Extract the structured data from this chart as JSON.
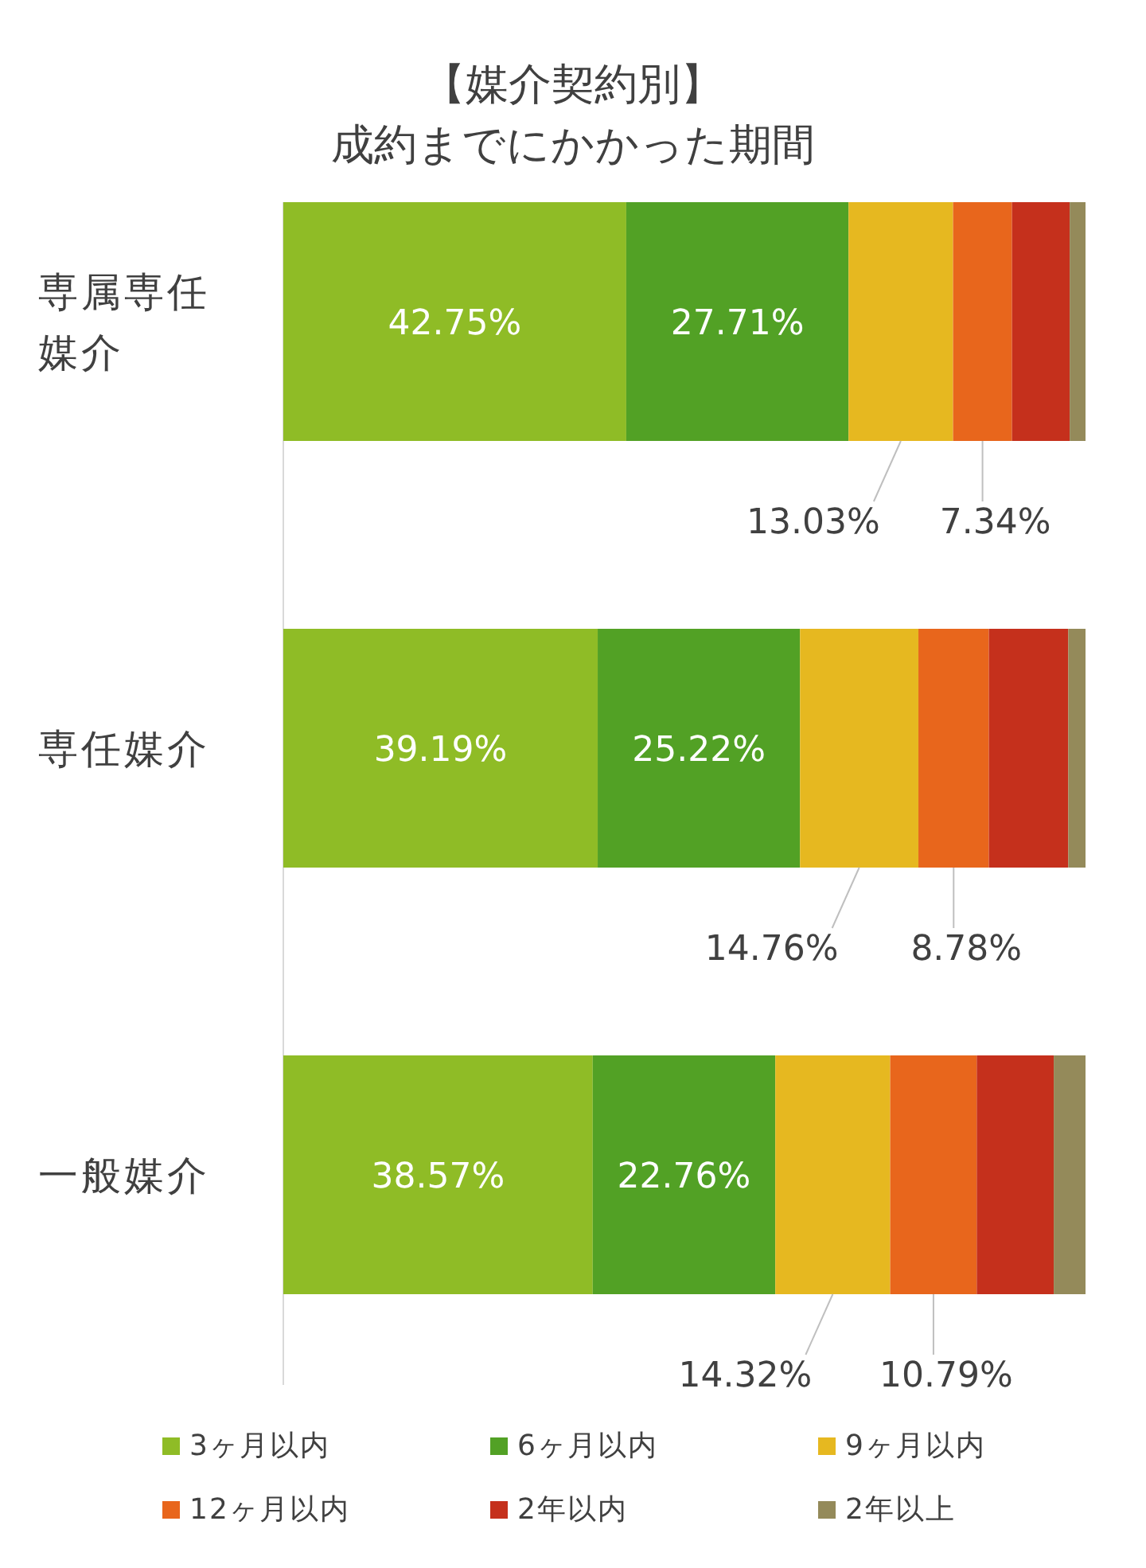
{
  "chart_data": {
    "type": "bar",
    "orientation": "horizontal",
    "stacked": true,
    "title": "【媒介契約別】",
    "subtitle": "成約までにかかった期間",
    "categories": [
      "専属専任媒介",
      "専任媒介",
      "一般媒介"
    ],
    "xlim": [
      0,
      100
    ],
    "legend": "bottom",
    "series": [
      {
        "name": "3ヶ月以内",
        "color": "#8fbc26",
        "values": [
          42.75,
          39.19,
          38.57
        ],
        "value_labels": [
          "42.75%",
          "39.19%",
          "38.57%"
        ]
      },
      {
        "name": "6ヶ月以内",
        "color": "#52a125",
        "values": [
          27.71,
          25.22,
          22.76
        ],
        "value_labels": [
          "27.71%",
          "25.22%",
          "22.76%"
        ]
      },
      {
        "name": "9ヶ月以内",
        "color": "#e6b820",
        "values": [
          13.03,
          14.76,
          14.32
        ],
        "value_labels": [
          "13.03%",
          "14.76%",
          "14.32%"
        ]
      },
      {
        "name": "12ヶ月以内",
        "color": "#e8661c",
        "values": [
          7.34,
          8.78,
          10.79
        ],
        "value_labels": [
          "7.34%",
          "8.78%",
          "10.79%"
        ]
      },
      {
        "name": "2年以内",
        "color": "#c5301c",
        "values": [
          7.2,
          9.9,
          9.6
        ],
        "value_labels": [
          null,
          null,
          null
        ]
      },
      {
        "name": "2年以上",
        "color": "#948a5a",
        "values": [
          1.97,
          2.15,
          3.96
        ],
        "value_labels": [
          null,
          null,
          null
        ]
      }
    ]
  }
}
